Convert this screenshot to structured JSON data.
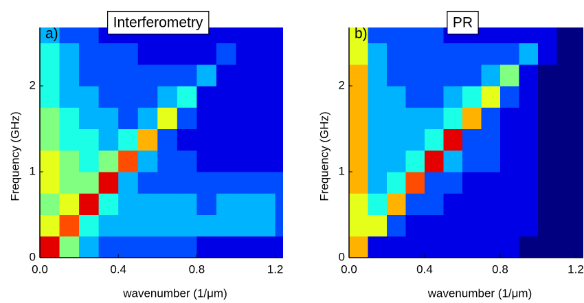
{
  "chart_data": [
    {
      "type": "heatmap",
      "title": "Interferometry",
      "panel_label": "a)",
      "x_label": "wavenumber (1/μm)",
      "y_label": "Frequency (GHz)",
      "colormap": "jet",
      "zlim": [
        0,
        10
      ],
      "x": [
        0.05,
        0.15,
        0.25,
        0.35,
        0.45,
        0.55,
        0.65,
        0.75,
        0.85,
        0.95,
        1.05,
        1.15,
        1.25
      ],
      "y": [
        0.125,
        0.375,
        0.625,
        0.875,
        1.125,
        1.375,
        1.625,
        1.875,
        2.125,
        2.375,
        2.625
      ],
      "z": [
        [
          9,
          5,
          3,
          2,
          2,
          2,
          2,
          2,
          1,
          1,
          1,
          1,
          1
        ],
        [
          6,
          8,
          4,
          3,
          3,
          3,
          3,
          3,
          3,
          3,
          3,
          3,
          2
        ],
        [
          5,
          6,
          9,
          4,
          3,
          3,
          3,
          3,
          2,
          3,
          3,
          3,
          2
        ],
        [
          6,
          5,
          5,
          9,
          3,
          2,
          2,
          2,
          2,
          2,
          2,
          2,
          2
        ],
        [
          6,
          5,
          4,
          5,
          8,
          3,
          2,
          2,
          1,
          1,
          1,
          1,
          1
        ],
        [
          5,
          4,
          4,
          3,
          4,
          7,
          2,
          1,
          1,
          1,
          1,
          1,
          1
        ],
        [
          5,
          4,
          3,
          3,
          2,
          3,
          6,
          2,
          1,
          1,
          1,
          1,
          1
        ],
        [
          4,
          3,
          3,
          2,
          2,
          2,
          3,
          4,
          1,
          1,
          1,
          1,
          1
        ],
        [
          4,
          3,
          2,
          2,
          2,
          2,
          2,
          2,
          3,
          1,
          1,
          1,
          1
        ],
        [
          4,
          3,
          2,
          2,
          2,
          1,
          1,
          1,
          1,
          2,
          1,
          1,
          1
        ],
        [
          3,
          2,
          2,
          1,
          1,
          1,
          1,
          1,
          1,
          1,
          1,
          1,
          1
        ]
      ],
      "xlim": [
        0,
        1.24
      ],
      "ylim": [
        0,
        2.68
      ],
      "xticks": [
        {
          "value": 0,
          "label": "0.0"
        },
        0.4,
        0.8,
        1.2
      ],
      "yticks": [
        0,
        1,
        2
      ]
    },
    {
      "type": "heatmap",
      "title": "PR",
      "panel_label": "b)",
      "x_label": "wavenumber (1/μm)",
      "y_label": "Frequency (GHz)",
      "colormap": "jet",
      "zlim": [
        0,
        10
      ],
      "x": [
        0.05,
        0.15,
        0.25,
        0.35,
        0.45,
        0.55,
        0.65,
        0.75,
        0.85,
        0.95,
        1.05,
        1.15,
        1.25
      ],
      "y": [
        0.125,
        0.375,
        0.625,
        0.875,
        1.125,
        1.375,
        1.625,
        1.875,
        2.125,
        2.375,
        2.625
      ],
      "z": [
        [
          7,
          1,
          1,
          1,
          1,
          1,
          1,
          1,
          1,
          0,
          0,
          0,
          0
        ],
        [
          6,
          6,
          2,
          1,
          1,
          1,
          1,
          1,
          1,
          1,
          0,
          0,
          0
        ],
        [
          6,
          4,
          7,
          2,
          2,
          1,
          1,
          1,
          1,
          1,
          0,
          0,
          0
        ],
        [
          7,
          3,
          4,
          8,
          2,
          2,
          1,
          1,
          1,
          1,
          0,
          0,
          0
        ],
        [
          7,
          3,
          3,
          4,
          9,
          3,
          2,
          2,
          1,
          1,
          0,
          0,
          0
        ],
        [
          7,
          3,
          3,
          3,
          4,
          9,
          2,
          2,
          1,
          1,
          0,
          0,
          0
        ],
        [
          7,
          3,
          3,
          3,
          3,
          4,
          7,
          2,
          1,
          1,
          0,
          0,
          0
        ],
        [
          7,
          3,
          3,
          2,
          2,
          3,
          4,
          6,
          2,
          1,
          0,
          0,
          0
        ],
        [
          7,
          3,
          2,
          2,
          2,
          2,
          2,
          3,
          5,
          1,
          0,
          0,
          0
        ],
        [
          6,
          3,
          2,
          2,
          2,
          2,
          2,
          2,
          2,
          3,
          1,
          0,
          0
        ],
        [
          6,
          2,
          2,
          2,
          2,
          1,
          1,
          1,
          1,
          1,
          1,
          0,
          0
        ]
      ],
      "xlim": [
        0,
        1.24
      ],
      "ylim": [
        0,
        2.68
      ],
      "xticks": [
        {
          "value": 0,
          "label": "0.0"
        },
        0.4,
        0.8,
        1.2
      ],
      "yticks": [
        0,
        1,
        2
      ]
    }
  ]
}
